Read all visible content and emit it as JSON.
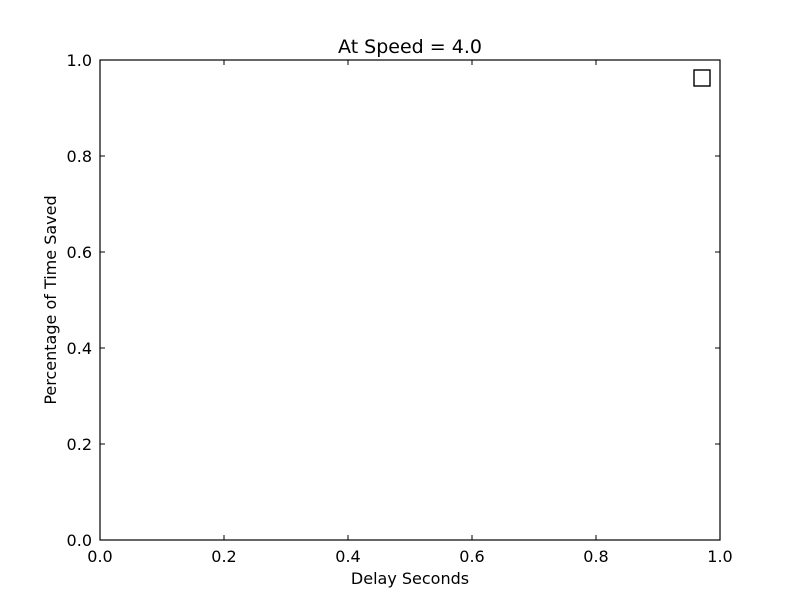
{
  "chart_data": {
    "type": "scatter",
    "title": "At Speed = 4.0",
    "xlabel": "Delay Seconds",
    "ylabel": "Percentage of Time Saved",
    "xlim": [
      0.0,
      1.0
    ],
    "ylim": [
      0.0,
      1.0
    ],
    "xticks": [
      "0.0",
      "0.2",
      "0.4",
      "0.6",
      "0.8",
      "1.0"
    ],
    "yticks": [
      "0.0",
      "0.2",
      "0.4",
      "0.6",
      "0.8",
      "1.0"
    ],
    "grid": false,
    "legend": {
      "placement": "top-right",
      "entries": [
        {
          "marker": "square",
          "label": ""
        }
      ]
    },
    "series": [
      {
        "values": []
      }
    ]
  }
}
